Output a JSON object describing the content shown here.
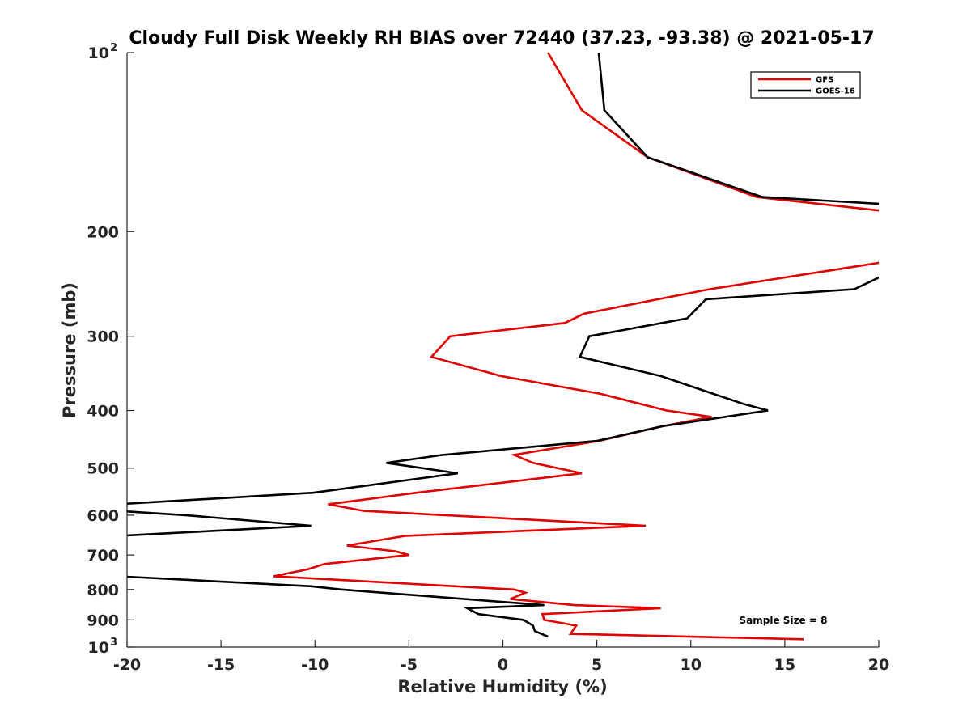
{
  "chart_data": {
    "type": "line",
    "title": "Cloudy Full Disk Weekly RH BIAS over 72440 (37.23, -93.38) @ 2021-05-17",
    "xlabel": "Relative Humidity (%)",
    "ylabel": "Pressure (mb)",
    "xlim": [
      -20,
      20
    ],
    "ylim": [
      100,
      1000
    ],
    "y_scale": "log",
    "y_reversed": true,
    "grid": false,
    "legend_position": "top-right",
    "x_ticks": [
      {
        "value": -20,
        "label": "-20"
      },
      {
        "value": -15,
        "label": "-15"
      },
      {
        "value": -10,
        "label": "-10"
      },
      {
        "value": -5,
        "label": "-5"
      },
      {
        "value": 0,
        "label": "0"
      },
      {
        "value": 5,
        "label": "5"
      },
      {
        "value": 10,
        "label": "10"
      },
      {
        "value": 15,
        "label": "15"
      },
      {
        "value": 20,
        "label": "20"
      }
    ],
    "y_ticks": [
      {
        "value": 100,
        "base": "10",
        "exp": "2"
      },
      {
        "value": 200,
        "label": "200"
      },
      {
        "value": 300,
        "label": "300"
      },
      {
        "value": 400,
        "label": "400"
      },
      {
        "value": 500,
        "label": "500"
      },
      {
        "value": 600,
        "label": "600"
      },
      {
        "value": 700,
        "label": "700"
      },
      {
        "value": 800,
        "label": "800"
      },
      {
        "value": 900,
        "label": "900"
      },
      {
        "value": 1000,
        "base": "10",
        "exp": "3"
      }
    ],
    "annotation": "Sample Size = 8",
    "series": [
      {
        "name": "GFS",
        "color": "#e00000",
        "points": [
          [
            2.4,
            100
          ],
          [
            4.2,
            125
          ],
          [
            7.7,
            150
          ],
          [
            13.5,
            175
          ],
          [
            20.5,
            185
          ],
          null,
          [
            20.3,
            225
          ],
          [
            11.0,
            250
          ],
          [
            4.3,
            275
          ],
          [
            3.3,
            285
          ],
          [
            -2.8,
            300
          ],
          [
            -3.8,
            325
          ],
          [
            -0.1,
            350
          ],
          [
            5.2,
            375
          ],
          [
            8.7,
            400
          ],
          [
            11.1,
            410
          ],
          [
            8.5,
            425
          ],
          [
            5.1,
            450
          ],
          [
            0.6,
            475
          ],
          [
            1.6,
            490
          ],
          [
            4.2,
            510
          ],
          [
            -4.6,
            550
          ],
          [
            -9.3,
            575
          ],
          [
            -7.4,
            590
          ],
          [
            7.6,
            625
          ],
          [
            -5.2,
            650
          ],
          [
            -8.3,
            675
          ],
          [
            -5.7,
            690
          ],
          [
            -5.0,
            700
          ],
          [
            -9.5,
            725
          ],
          [
            -10.4,
            740
          ],
          [
            -12.2,
            760
          ],
          [
            0.6,
            800
          ],
          [
            1.2,
            810
          ],
          [
            0.4,
            830
          ],
          [
            3.8,
            850
          ],
          [
            8.4,
            860
          ],
          [
            2.1,
            880
          ],
          [
            2.2,
            900
          ],
          [
            3.9,
            920
          ],
          [
            3.6,
            950
          ],
          [
            16.0,
            970
          ]
        ]
      },
      {
        "name": "GOES-16",
        "color": "#000000",
        "points": [
          [
            5.1,
            100
          ],
          [
            5.4,
            125
          ],
          [
            7.7,
            150
          ],
          [
            13.8,
            175
          ],
          [
            20.5,
            180
          ],
          null,
          [
            20.5,
            235
          ],
          [
            18.7,
            250
          ],
          [
            10.8,
            260
          ],
          [
            9.8,
            280
          ],
          [
            4.6,
            300
          ],
          [
            4.1,
            325
          ],
          [
            8.4,
            350
          ],
          [
            11.2,
            375
          ],
          [
            12.8,
            390
          ],
          [
            14.1,
            400
          ],
          [
            8.5,
            425
          ],
          [
            5.0,
            450
          ],
          [
            -3.2,
            475
          ],
          [
            -6.2,
            490
          ],
          [
            -2.4,
            510
          ],
          [
            -10.1,
            550
          ],
          [
            -20.5,
            575
          ],
          null,
          [
            -20.5,
            590
          ],
          [
            -16.9,
            600
          ],
          [
            -10.2,
            625
          ],
          [
            -20.5,
            650
          ],
          null,
          [
            -20.5,
            760
          ],
          [
            -10.2,
            790
          ],
          [
            -8.6,
            800
          ],
          [
            2.2,
            850
          ],
          [
            -1.9,
            860
          ],
          [
            -1.3,
            880
          ],
          [
            1.1,
            900
          ],
          [
            1.6,
            920
          ],
          [
            1.7,
            940
          ],
          [
            2.4,
            960
          ]
        ]
      }
    ]
  }
}
